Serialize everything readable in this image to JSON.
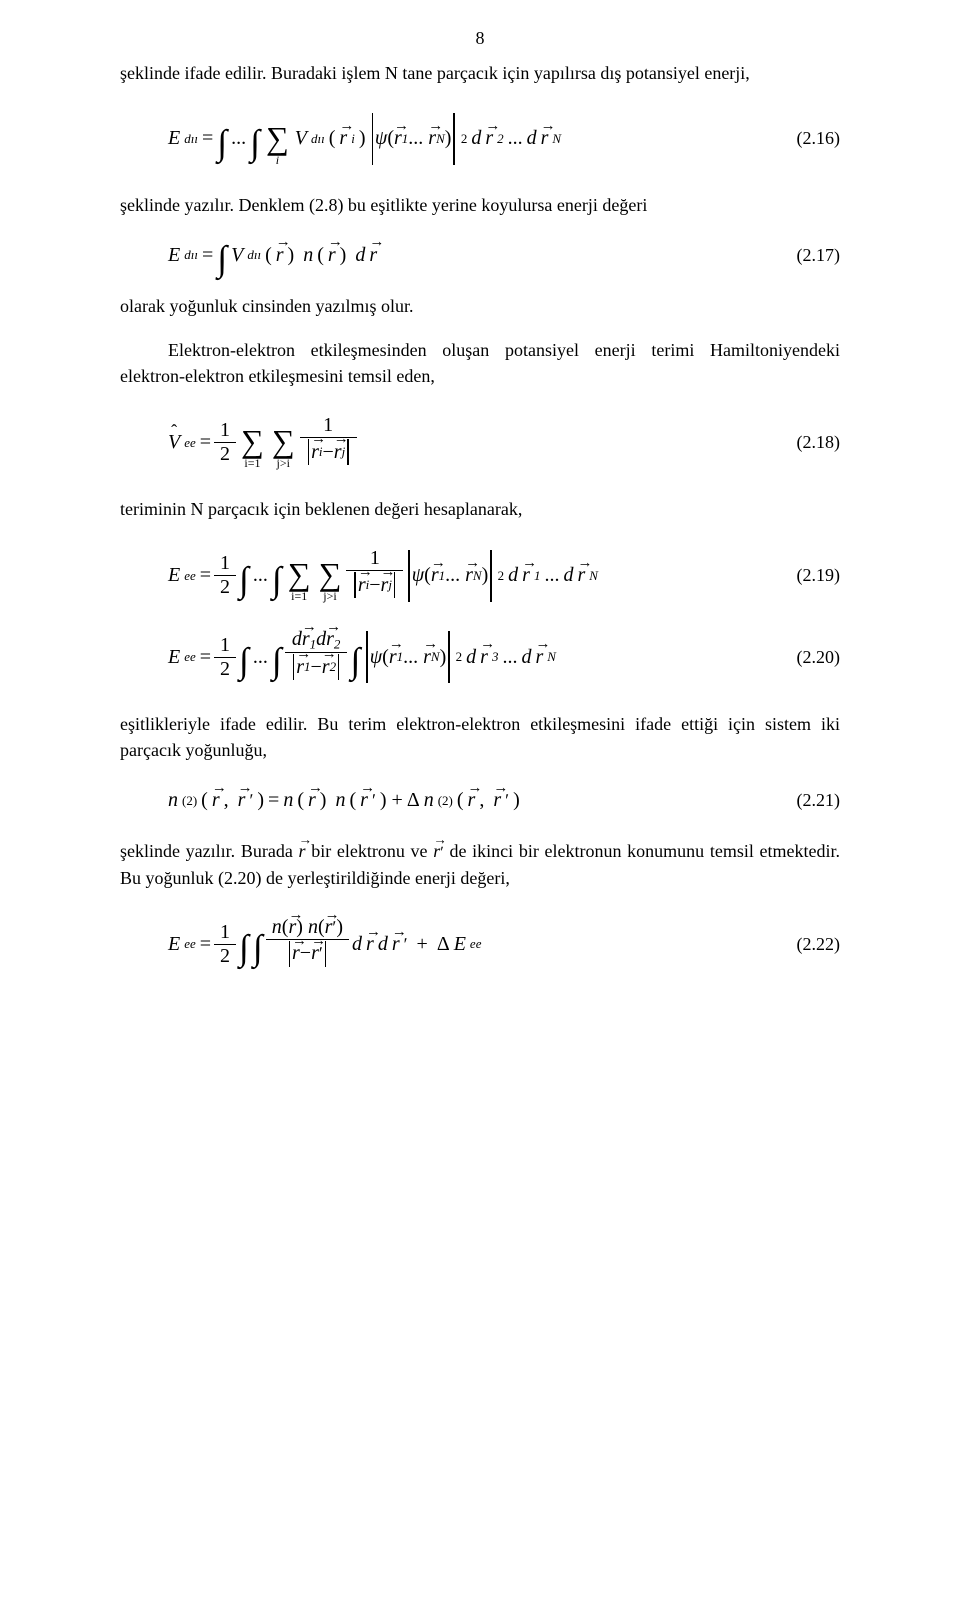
{
  "page_number": "8",
  "typography": {
    "body_fontsize_pt": 13,
    "eq_fontsize_pt": 15,
    "font_family": "Times New Roman",
    "color": "#000000"
  },
  "background_color": "#ffffff",
  "paragraphs": {
    "p1": "şeklinde ifade edilir. Buradaki işlem N tane parçacık için yapılırsa dış potansiyel enerji,",
    "p2": "şeklinde yazılır. Denklem (2.8) bu eşitlikte yerine koyulursa enerji değeri",
    "p3": "olarak yoğunluk cinsinden yazılmış olur.",
    "p4": "Elektron-elektron etkileşmesinden oluşan potansiyel enerji terimi Hamiltoniyendeki elektron-elektron etkileşmesini temsil eden,",
    "p5": "teriminin N parçacık için beklenen değeri hesaplanarak,",
    "p6": "eşitlikleriyle ifade edilir. Bu terim elektron-elektron etkileşmesini ifade ettiği için sistem iki parçacık yoğunluğu,",
    "p7_a": "şeklinde yazılır. Burada ",
    "p7_b": " bir elektronu ve ",
    "p7_c": " de ikinci bir elektronun konumunu temsil etmektedir. Bu yoğunluk (2.20) de yerleştirildiğinde enerji değeri,"
  },
  "equations": {
    "e216": {
      "number": "(2.16)",
      "lhs_E": "E",
      "lhs_sub": "dıı",
      "dots": "...",
      "sum_idx": "i",
      "V": "V",
      "V_sub": "dıı",
      "r": "r",
      "ri_sub": "i",
      "psi": "ψ",
      "r1_sub": "1",
      "rN_sub": "N",
      "sq": "2",
      "d": "d",
      "r2_sub": "2"
    },
    "e217": {
      "number": "(2.17)",
      "lhs_E": "E",
      "lhs_sub": "dıı",
      "V": "V",
      "V_sub": "dıı",
      "r": "r",
      "n": "n",
      "d": "d"
    },
    "e218": {
      "number": "(2.18)",
      "lhs_V": "V",
      "lhs_sub": "ee",
      "half_num": "1",
      "half_den": "2",
      "sum1_bot": "i=1",
      "sum2_bot": "j>i",
      "f_num": "1",
      "r": "r",
      "ri_sub": "i",
      "rj_sub": "j"
    },
    "e219": {
      "number": "(2.19)",
      "lhs_E": "E",
      "lhs_sub": "ee",
      "half_num": "1",
      "half_den": "2",
      "dots": "...",
      "sum1_bot": "i=1",
      "sum2_bot": "j>i",
      "f_num": "1",
      "r": "r",
      "ri_sub": "i",
      "rj_sub": "j",
      "psi": "ψ",
      "r1_sub": "1",
      "rN_sub": "N",
      "sq": "2",
      "d": "d"
    },
    "e220": {
      "number": "(2.20)",
      "lhs_E": "E",
      "lhs_sub": "ee",
      "half_num": "1",
      "half_den": "2",
      "dots": "...",
      "d": "d",
      "r": "r",
      "r1_sub": "1",
      "r2_sub": "2",
      "psi": "ψ",
      "rN_sub": "N",
      "sq": "2",
      "r3_sub": "3"
    },
    "e221": {
      "number": "(2.21)",
      "n": "n",
      "super2": "(2)",
      "r": "r",
      "prime": "ʹ",
      "Delta": "Δ"
    },
    "e222": {
      "number": "(2.22)",
      "lhs_E": "E",
      "lhs_sub": "ee",
      "half_num": "1",
      "half_den": "2",
      "n": "n",
      "r": "r",
      "prime": "ʹ",
      "d": "d",
      "Delta": "Δ",
      "DeltaE": "E",
      "DeltaE_sub": "ee"
    }
  },
  "inline_r": {
    "r": "r",
    "prime": "ʹ"
  }
}
